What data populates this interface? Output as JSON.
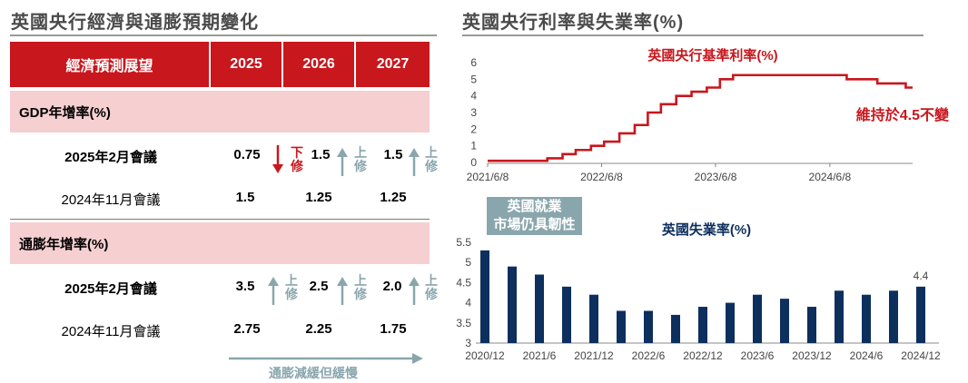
{
  "left_title": "英國央行經濟與通膨預期變化",
  "right_title": "英國央行利率與失業率(%)",
  "table": {
    "header": [
      "經濟預測展望",
      "2025",
      "2026",
      "2027"
    ],
    "sections": [
      {
        "label": "GDP年增率(%)",
        "rows": [
          {
            "label": "2025年2月會議",
            "values": [
              "0.75",
              "1.5",
              "1.5"
            ],
            "notes": [
              "下修",
              "上修",
              "上修"
            ]
          },
          {
            "label": "2024年11月會議",
            "values": [
              "1.5",
              "1.25",
              "1.25"
            ]
          }
        ]
      },
      {
        "label": "通膨年增率(%)",
        "rows": [
          {
            "label": "2025年2月會議",
            "values": [
              "3.5",
              "2.5",
              "2.0"
            ],
            "notes": [
              "上修",
              "上修",
              "上修"
            ]
          },
          {
            "label": "2024年11月會議",
            "values": [
              "2.75",
              "2.25",
              "1.75"
            ]
          }
        ]
      }
    ],
    "footer_note": "通膨減緩但緩慢"
  },
  "colors": {
    "red": "#c8171d",
    "navy": "#0d2f5e",
    "teal": "#8aa6ad",
    "pink": "#f6cfd1"
  },
  "chart_data": [
    {
      "type": "line",
      "title": "英國央行基準利率(%)",
      "x_ticks": [
        "2021/6/8",
        "2022/6/8",
        "2023/6/8",
        "2024/6/8"
      ],
      "xlim": [
        "2021/6/8",
        "2025/2/28"
      ],
      "ylim": [
        0,
        6
      ],
      "y_ticks": [
        0,
        1,
        2,
        3,
        4,
        5,
        6
      ],
      "step": true,
      "points": [
        {
          "date": "2021/6/8",
          "value": 0.1
        },
        {
          "date": "2021/12/16",
          "value": 0.25
        },
        {
          "date": "2022/2/3",
          "value": 0.5
        },
        {
          "date": "2022/3/17",
          "value": 0.75
        },
        {
          "date": "2022/5/5",
          "value": 1.0
        },
        {
          "date": "2022/6/16",
          "value": 1.25
        },
        {
          "date": "2022/8/4",
          "value": 1.75
        },
        {
          "date": "2022/9/22",
          "value": 2.25
        },
        {
          "date": "2022/11/3",
          "value": 3.0
        },
        {
          "date": "2022/12/15",
          "value": 3.5
        },
        {
          "date": "2023/2/2",
          "value": 4.0
        },
        {
          "date": "2023/3/23",
          "value": 4.25
        },
        {
          "date": "2023/5/11",
          "value": 4.5
        },
        {
          "date": "2023/6/22",
          "value": 5.0
        },
        {
          "date": "2023/8/3",
          "value": 5.25
        },
        {
          "date": "2024/8/1",
          "value": 5.0
        },
        {
          "date": "2024/11/7",
          "value": 4.75
        },
        {
          "date": "2025/2/6",
          "value": 4.5
        }
      ],
      "annotation": "維持於4.5不變",
      "color": "#c8171d"
    },
    {
      "type": "bar",
      "title": "英國失業率(%)",
      "categories": [
        "2020/12",
        "2021/3",
        "2021/6",
        "2021/9",
        "2021/12",
        "2022/3",
        "2022/6",
        "2022/9",
        "2022/12",
        "2023/3",
        "2023/6",
        "2023/9",
        "2023/12",
        "2024/3",
        "2024/6",
        "2024/9",
        "2024/12"
      ],
      "tick_labels": [
        "2020/12",
        "2021/6",
        "2021/12",
        "2022/6",
        "2022/12",
        "2023/6",
        "2023/12",
        "2024/6",
        "2024/12"
      ],
      "values": [
        5.3,
        4.9,
        4.7,
        4.4,
        4.2,
        3.8,
        3.8,
        3.7,
        3.9,
        4.0,
        4.2,
        4.1,
        3.9,
        4.3,
        4.2,
        4.3,
        4.4
      ],
      "ylim": [
        3,
        5.5
      ],
      "y_ticks": [
        "3",
        "3.5",
        "4",
        "4.5",
        "5",
        "5.5"
      ],
      "last_label": "4.4",
      "badge": [
        "英國就業",
        "市場仍具韌性"
      ],
      "color": "#0d2f5e"
    }
  ]
}
